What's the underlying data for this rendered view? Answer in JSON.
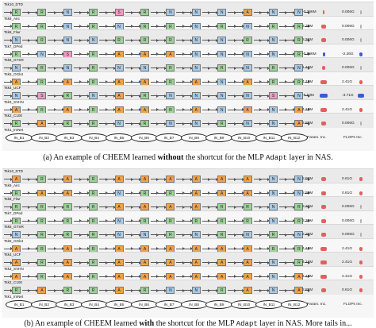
{
  "panel_a": {
    "tasks": [
      {
        "label": "Tsk10_DTD",
        "param": "-0.296M",
        "flops": "0.006G",
        "blocks": [
          "R",
          "R",
          "N",
          "R",
          "S",
          "R",
          "N",
          "N",
          "N",
          "A",
          "N",
          "N"
        ],
        "param_color": "#e06060",
        "flops_color": "#b0b0b0",
        "param_frac": 0.05,
        "flops_frac": 0.02
      },
      {
        "label": "Tsk9_Airc",
        "param": "2.36M",
        "flops": "0.006G",
        "blocks": [
          "R",
          "R",
          "N",
          "R",
          "N",
          "R",
          "R",
          "N",
          "R",
          "N",
          "R",
          "R"
        ],
        "param_color": "#e06060",
        "flops_color": "#b0b0b0",
        "param_frac": 0.5,
        "flops_frac": 0.02
      },
      {
        "label": "Tsk8_Flwr",
        "param": "2.36M",
        "flops": "0.006G",
        "blocks": [
          "N",
          "R",
          "N",
          "N",
          "R",
          "R",
          "R",
          "N",
          "N",
          "R",
          "N",
          "R"
        ],
        "param_color": "#e06060",
        "flops_color": "#b0b0b0",
        "param_frac": 0.5,
        "flops_frac": 0.02
      },
      {
        "label": "Tsk7_DPed",
        "param": "-0.886M",
        "flops": "-2.26G",
        "blocks": [
          "R",
          "N",
          "S",
          "R",
          "A",
          "A",
          "A",
          "N",
          "N",
          "N",
          "N",
          "R"
        ],
        "param_color": "#3b5bd6",
        "flops_color": "#3b5bd6",
        "param_frac": 0.25,
        "flops_frac": 0.35
      },
      {
        "label": "Tsk6_GTSR",
        "param": "1.18M",
        "flops": "0.006G",
        "blocks": [
          "N",
          "R",
          "N",
          "R",
          "N",
          "N",
          "R",
          "N",
          "R",
          "N",
          "R",
          "N"
        ],
        "param_color": "#e06060",
        "flops_color": "#b0b0b0",
        "param_frac": 0.3,
        "flops_frac": 0.02
      },
      {
        "label": "Tsk5_OGlot",
        "param": "4.13M",
        "flops": "2.41G",
        "blocks": [
          "A",
          "R",
          "A",
          "R",
          "A",
          "A",
          "R",
          "A",
          "N",
          "A",
          "R",
          "R"
        ],
        "param_color": "#e06060",
        "flops_color": "#e06060",
        "param_frac": 0.65,
        "flops_frac": 0.4
      },
      {
        "label": "Tsk4_UCF",
        "param": "-6.53M",
        "flops": "-3.71G",
        "blocks": [
          "N",
          "S",
          "R",
          "N",
          "A",
          "R",
          "N",
          "N",
          "N",
          "N",
          "S",
          "N"
        ],
        "param_color": "#3b5bd6",
        "flops_color": "#3b5bd6",
        "param_frac": 0.85,
        "flops_frac": 0.6
      },
      {
        "label": "Tsk3_SVHN",
        "param": "4.13M",
        "flops": "2.41G",
        "blocks": [
          "A",
          "R",
          "A",
          "R",
          "A",
          "A",
          "R",
          "A",
          "N",
          "A",
          "N",
          "A"
        ],
        "param_color": "#e06060",
        "flops_color": "#e06060",
        "param_frac": 0.65,
        "flops_frac": 0.4
      },
      {
        "label": "Tsk2_C100",
        "param": "2.89M",
        "flops": "0.006G",
        "blocks": [
          "R",
          "A",
          "R",
          "R",
          "N",
          "R",
          "N",
          "N",
          "R",
          "N",
          "N",
          "A"
        ],
        "param_color": "#e06060",
        "flops_color": "#b0b0b0",
        "param_frac": 0.55,
        "flops_frac": 0.02
      }
    ],
    "task1_label": "Tsk1_ImNet",
    "nodes": [
      "IN_B1",
      "IN_B2",
      "IN_B3",
      "IN_B4",
      "IN_B5",
      "IN_B6",
      "IN_B7",
      "IN_B8",
      "IN_B9",
      "IN_B10",
      "IN_B11",
      "IN_B12"
    ],
    "col_param": "Param. Inc.",
    "col_flops": "FLOPs Inc.",
    "caption_pre": "(a) An example of CHEEM learned ",
    "caption_bold": "without",
    "caption_mid": " the shortcut for the MLP ",
    "caption_mono": "Adapt",
    "caption_post": " layer in NAS."
  },
  "panel_b": {
    "tasks": [
      {
        "label": "Tsk10_DTD",
        "param": "2.98M",
        "flops": "0.61G",
        "blocks": [
          "A",
          "R",
          "A",
          "R",
          "A",
          "A",
          "A",
          "A",
          "A",
          "A",
          "N",
          "N"
        ],
        "param_color": "#e06060",
        "flops_color": "#e06060",
        "param_frac": 0.55,
        "flops_frac": 0.3
      },
      {
        "label": "Tsk9_Airc",
        "param": "2.98M",
        "flops": "0.61G",
        "blocks": [
          "R",
          "A",
          "A",
          "R",
          "N",
          "R",
          "R",
          "A",
          "A",
          "A",
          "N",
          "N"
        ],
        "param_color": "#e06060",
        "flops_color": "#e06060",
        "param_frac": 0.55,
        "flops_frac": 0.3
      },
      {
        "label": "Tsk8_Flwr",
        "param": "2.36M",
        "flops": "0.006G",
        "blocks": [
          "R",
          "R",
          "R",
          "R",
          "A",
          "A",
          "A",
          "A",
          "R",
          "R",
          "N",
          "R"
        ],
        "param_color": "#e06060",
        "flops_color": "#b0b0b0",
        "param_frac": 0.5,
        "flops_frac": 0.02
      },
      {
        "label": "Tsk7_DPed",
        "param": "2.36M",
        "flops": "0.006G",
        "blocks": [
          "R",
          "R",
          "R",
          "R",
          "N",
          "R",
          "R",
          "R",
          "R",
          "R",
          "N",
          "R"
        ],
        "param_color": "#e06060",
        "flops_color": "#b0b0b0",
        "param_frac": 0.5,
        "flops_frac": 0.02
      },
      {
        "label": "Tsk6_GTSR",
        "param": "2.36M",
        "flops": "0.006G",
        "blocks": [
          "N",
          "R",
          "R",
          "R",
          "N",
          "N",
          "R",
          "N",
          "R",
          "N",
          "R",
          "N"
        ],
        "param_color": "#e06060",
        "flops_color": "#b0b0b0",
        "param_frac": 0.5,
        "flops_frac": 0.02
      },
      {
        "label": "Tsk5_OGlot",
        "param": "4.13M",
        "flops": "2.41G",
        "blocks": [
          "A",
          "R",
          "A",
          "R",
          "A",
          "A",
          "A",
          "A",
          "A",
          "A",
          "R",
          "R"
        ],
        "param_color": "#e06060",
        "flops_color": "#e06060",
        "param_frac": 0.65,
        "flops_frac": 0.4
      },
      {
        "label": "Tsk4_UCF",
        "param": "4.13M",
        "flops": "2.41G",
        "blocks": [
          "A",
          "R",
          "A",
          "R",
          "A",
          "A",
          "A",
          "A",
          "A",
          "A",
          "N",
          "R"
        ],
        "param_color": "#e06060",
        "flops_color": "#e06060",
        "param_frac": 0.65,
        "flops_frac": 0.4
      },
      {
        "label": "Tsk3_SVHN",
        "param": "4.13M",
        "flops": "2.41G",
        "blocks": [
          "A",
          "R",
          "A",
          "R",
          "A",
          "A",
          "A",
          "A",
          "A",
          "A",
          "N",
          "A"
        ],
        "param_color": "#e06060",
        "flops_color": "#e06060",
        "param_frac": 0.65,
        "flops_frac": 0.4
      },
      {
        "label": "Tsk2_C100",
        "param": "2.89M",
        "flops": "0.61G",
        "blocks": [
          "R",
          "A",
          "R",
          "R",
          "A",
          "R",
          "N",
          "N",
          "R",
          "A",
          "N",
          "A"
        ],
        "param_color": "#e06060",
        "flops_color": "#e06060",
        "param_frac": 0.55,
        "flops_frac": 0.3
      }
    ],
    "task1_label": "Tsk1_ImNet",
    "nodes": [
      "IN_B1",
      "IN_B2",
      "IN_B3",
      "IN_B4",
      "IN_B5",
      "IN_B6",
      "IN_B7",
      "IN_B8",
      "IN_B9",
      "IN_B10",
      "IN_B11",
      "IN_B12"
    ],
    "col_param": "Param. Inc.",
    "col_flops": "FLOPs Inc.",
    "caption_pre": "(b) An example of CHEEM learned ",
    "caption_bold": "with",
    "caption_mid": " the shortcut for the MLP ",
    "caption_mono": "Adapt",
    "caption_post": " layer in NAS. More tails in..."
  }
}
